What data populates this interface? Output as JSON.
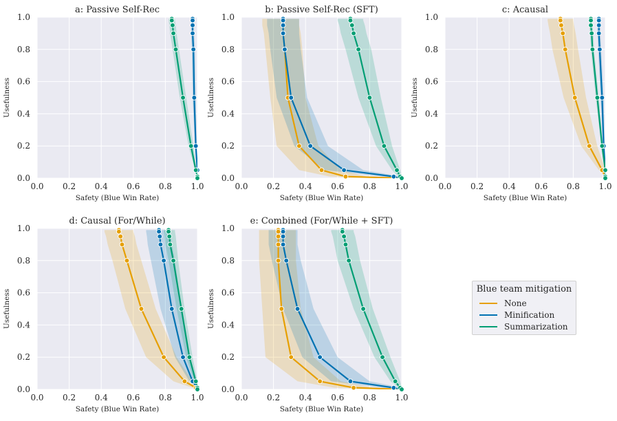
{
  "colors": {
    "none": "#E69F00",
    "minification": "#0072B2",
    "summarization": "#009E73",
    "panel_bg": "#EAEAF2",
    "grid": "#ffffff"
  },
  "legend": {
    "title": "Blue team mitigation",
    "entries": [
      "None",
      "Minification",
      "Summarization"
    ]
  },
  "chart_data": [
    {
      "type": "line",
      "title": "a: Passive Self-Rec",
      "xlabel": "Safety (Blue Win Rate)",
      "ylabel": "Usefulness",
      "xlim": [
        0.0,
        1.0
      ],
      "ylim": [
        0.0,
        1.0
      ],
      "xticks": [
        "0.0",
        "0.2",
        "0.4",
        "0.6",
        "0.8",
        "1.0"
      ],
      "yticks": [
        "0.0",
        "0.2",
        "0.4",
        "0.6",
        "0.8",
        "1.0"
      ],
      "series": [
        {
          "name": "None",
          "x": [],
          "y": [],
          "band_lo": [],
          "band_hi": []
        },
        {
          "name": "Minification",
          "x": [
            0.97,
            0.97,
            0.97,
            0.97,
            0.975,
            0.98,
            0.99,
            1.0,
            1.0,
            1.0
          ],
          "y": [
            0.99,
            0.98,
            0.95,
            0.9,
            0.8,
            0.5,
            0.2,
            0.05,
            0.01,
            0.0
          ],
          "band_lo": [
            0.96,
            0.96,
            0.96,
            0.96,
            0.965,
            0.97,
            0.985,
            0.995,
            1.0,
            1.0
          ],
          "band_hi": [
            0.98,
            0.98,
            0.98,
            0.98,
            0.985,
            0.99,
            0.995,
            1.0,
            1.0,
            1.0
          ]
        },
        {
          "name": "Summarization",
          "x": [
            0.84,
            0.84,
            0.845,
            0.85,
            0.865,
            0.91,
            0.96,
            0.99,
            1.0,
            1.0
          ],
          "y": [
            0.99,
            0.98,
            0.95,
            0.9,
            0.8,
            0.5,
            0.2,
            0.05,
            0.01,
            0.0
          ],
          "band_lo": [
            0.82,
            0.82,
            0.825,
            0.83,
            0.845,
            0.89,
            0.945,
            0.985,
            1.0,
            1.0
          ],
          "band_hi": [
            0.86,
            0.86,
            0.865,
            0.87,
            0.885,
            0.93,
            0.975,
            0.995,
            1.0,
            1.0
          ]
        }
      ]
    },
    {
      "type": "line",
      "title": "b: Passive Self-Rec (SFT)",
      "xlabel": "Safety (Blue Win Rate)",
      "ylabel": "Usefulness",
      "xlim": [
        0.0,
        1.0
      ],
      "ylim": [
        0.0,
        1.0
      ],
      "xticks": [
        "0.0",
        "0.2",
        "0.4",
        "0.6",
        "0.8",
        "1.0"
      ],
      "yticks": [
        "0.0",
        "0.2",
        "0.4",
        "0.6",
        "0.8",
        "1.0"
      ],
      "series": [
        {
          "name": "None",
          "x": [
            0.26,
            0.26,
            0.26,
            0.26,
            0.27,
            0.29,
            0.36,
            0.5,
            0.65,
            1.0
          ],
          "y": [
            0.99,
            0.98,
            0.95,
            0.9,
            0.8,
            0.5,
            0.2,
            0.05,
            0.01,
            0.0
          ],
          "band_lo": [
            0.13,
            0.13,
            0.13,
            0.14,
            0.15,
            0.18,
            0.22,
            0.36,
            0.55,
            1.0
          ],
          "band_hi": [
            0.36,
            0.36,
            0.36,
            0.37,
            0.38,
            0.4,
            0.48,
            0.62,
            0.78,
            1.0
          ]
        },
        {
          "name": "Minification",
          "x": [
            0.26,
            0.26,
            0.26,
            0.26,
            0.27,
            0.31,
            0.43,
            0.64,
            0.95,
            1.0
          ],
          "y": [
            0.99,
            0.98,
            0.95,
            0.9,
            0.8,
            0.5,
            0.2,
            0.05,
            0.01,
            0.0
          ],
          "band_lo": [
            0.16,
            0.16,
            0.16,
            0.17,
            0.18,
            0.22,
            0.33,
            0.52,
            0.88,
            1.0
          ],
          "band_hi": [
            0.36,
            0.36,
            0.36,
            0.36,
            0.37,
            0.41,
            0.54,
            0.76,
            1.0,
            1.0
          ]
        },
        {
          "name": "Summarization",
          "x": [
            0.68,
            0.68,
            0.69,
            0.7,
            0.73,
            0.8,
            0.89,
            0.97,
            0.99,
            1.0
          ],
          "y": [
            0.99,
            0.98,
            0.95,
            0.9,
            0.8,
            0.5,
            0.2,
            0.05,
            0.01,
            0.0
          ],
          "band_lo": [
            0.6,
            0.6,
            0.61,
            0.62,
            0.65,
            0.73,
            0.84,
            0.94,
            0.98,
            1.0
          ],
          "band_hi": [
            0.76,
            0.76,
            0.77,
            0.78,
            0.81,
            0.87,
            0.94,
            0.99,
            1.0,
            1.0
          ]
        }
      ]
    },
    {
      "type": "line",
      "title": "c: Acausal",
      "xlabel": "Safety (Blue Win Rate)",
      "ylabel": "Usefulness",
      "xlim": [
        0.0,
        1.0
      ],
      "ylim": [
        0.0,
        1.0
      ],
      "xticks": [
        "0.0",
        "0.2",
        "0.4",
        "0.6",
        "0.8",
        "1.0"
      ],
      "yticks": [
        "0.0",
        "0.2",
        "0.4",
        "0.6",
        "0.8",
        "1.0"
      ],
      "series": [
        {
          "name": "None",
          "x": [
            0.72,
            0.72,
            0.725,
            0.735,
            0.75,
            0.81,
            0.9,
            0.98,
            1.0,
            1.0
          ],
          "y": [
            0.99,
            0.98,
            0.95,
            0.9,
            0.8,
            0.5,
            0.2,
            0.05,
            0.01,
            0.0
          ],
          "band_lo": [
            0.64,
            0.64,
            0.645,
            0.655,
            0.67,
            0.74,
            0.85,
            0.96,
            1.0,
            1.0
          ],
          "band_hi": [
            0.8,
            0.8,
            0.805,
            0.815,
            0.83,
            0.88,
            0.95,
            1.0,
            1.0,
            1.0
          ]
        },
        {
          "name": "Minification",
          "x": [
            0.96,
            0.96,
            0.96,
            0.96,
            0.965,
            0.98,
            0.99,
            1.0,
            1.0,
            1.0
          ],
          "y": [
            0.99,
            0.98,
            0.95,
            0.9,
            0.8,
            0.5,
            0.2,
            0.05,
            0.01,
            0.0
          ],
          "band_lo": [
            0.95,
            0.95,
            0.95,
            0.95,
            0.955,
            0.97,
            0.985,
            0.995,
            1.0,
            1.0
          ],
          "band_hi": [
            0.97,
            0.97,
            0.97,
            0.97,
            0.975,
            0.99,
            0.995,
            1.0,
            1.0,
            1.0
          ]
        },
        {
          "name": "Summarization",
          "x": [
            0.91,
            0.91,
            0.91,
            0.915,
            0.92,
            0.95,
            0.98,
            1.0,
            1.0,
            1.0
          ],
          "y": [
            0.99,
            0.98,
            0.95,
            0.9,
            0.8,
            0.5,
            0.2,
            0.05,
            0.01,
            0.0
          ],
          "band_lo": [
            0.9,
            0.9,
            0.9,
            0.905,
            0.91,
            0.94,
            0.975,
            0.995,
            1.0,
            1.0
          ],
          "band_hi": [
            0.92,
            0.92,
            0.92,
            0.925,
            0.93,
            0.96,
            0.985,
            1.0,
            1.0,
            1.0
          ]
        }
      ]
    },
    {
      "type": "line",
      "title": "d: Causal (For/While)",
      "xlabel": "Safety (Blue Win Rate)",
      "ylabel": "Usefulness",
      "xlim": [
        0.0,
        1.0
      ],
      "ylim": [
        0.0,
        1.0
      ],
      "xticks": [
        "0.0",
        "0.2",
        "0.4",
        "0.6",
        "0.8",
        "1.0"
      ],
      "yticks": [
        "0.0",
        "0.2",
        "0.4",
        "0.6",
        "0.8",
        "1.0"
      ],
      "series": [
        {
          "name": "None",
          "x": [
            0.51,
            0.51,
            0.52,
            0.53,
            0.56,
            0.65,
            0.79,
            0.92,
            0.99,
            1.0
          ],
          "y": [
            0.99,
            0.98,
            0.95,
            0.9,
            0.8,
            0.5,
            0.2,
            0.05,
            0.01,
            0.0
          ],
          "band_lo": [
            0.42,
            0.42,
            0.43,
            0.44,
            0.47,
            0.55,
            0.68,
            0.85,
            0.97,
            1.0
          ],
          "band_hi": [
            0.6,
            0.6,
            0.61,
            0.62,
            0.65,
            0.74,
            0.87,
            0.97,
            1.0,
            1.0
          ]
        },
        {
          "name": "Minification",
          "x": [
            0.76,
            0.76,
            0.765,
            0.77,
            0.79,
            0.84,
            0.91,
            0.97,
            1.0,
            1.0
          ],
          "y": [
            0.99,
            0.98,
            0.95,
            0.9,
            0.8,
            0.5,
            0.2,
            0.05,
            0.01,
            0.0
          ],
          "band_lo": [
            0.68,
            0.68,
            0.685,
            0.69,
            0.71,
            0.77,
            0.86,
            0.95,
            1.0,
            1.0
          ],
          "band_hi": [
            0.83,
            0.83,
            0.835,
            0.84,
            0.86,
            0.9,
            0.95,
            0.99,
            1.0,
            1.0
          ]
        },
        {
          "name": "Summarization",
          "x": [
            0.82,
            0.82,
            0.825,
            0.83,
            0.85,
            0.9,
            0.95,
            0.99,
            1.0,
            1.0
          ],
          "y": [
            0.99,
            0.98,
            0.95,
            0.9,
            0.8,
            0.5,
            0.2,
            0.05,
            0.01,
            0.0
          ],
          "band_lo": [
            0.79,
            0.79,
            0.795,
            0.8,
            0.82,
            0.87,
            0.93,
            0.98,
            1.0,
            1.0
          ],
          "band_hi": [
            0.86,
            0.86,
            0.865,
            0.87,
            0.88,
            0.92,
            0.97,
            1.0,
            1.0,
            1.0
          ]
        }
      ]
    },
    {
      "type": "line",
      "title": "e: Combined (For/While + SFT)",
      "xlabel": "Safety (Blue Win Rate)",
      "ylabel": "Usefulness",
      "xlim": [
        0.0,
        1.0
      ],
      "ylim": [
        0.0,
        1.0
      ],
      "xticks": [
        "0.0",
        "0.2",
        "0.4",
        "0.6",
        "0.8",
        "1.0"
      ],
      "yticks": [
        "0.0",
        "0.2",
        "0.4",
        "0.6",
        "0.8",
        "1.0"
      ],
      "series": [
        {
          "name": "None",
          "x": [
            0.23,
            0.23,
            0.23,
            0.23,
            0.23,
            0.25,
            0.31,
            0.49,
            0.7,
            1.0
          ],
          "y": [
            0.99,
            0.98,
            0.95,
            0.9,
            0.8,
            0.5,
            0.2,
            0.05,
            0.01,
            0.0
          ],
          "band_lo": [
            0.11,
            0.11,
            0.11,
            0.11,
            0.11,
            0.13,
            0.15,
            0.35,
            0.58,
            1.0
          ],
          "band_hi": [
            0.34,
            0.34,
            0.34,
            0.34,
            0.34,
            0.37,
            0.45,
            0.62,
            0.82,
            1.0
          ]
        },
        {
          "name": "Minification",
          "x": [
            0.26,
            0.26,
            0.26,
            0.26,
            0.28,
            0.35,
            0.49,
            0.68,
            0.95,
            1.0
          ],
          "y": [
            0.99,
            0.98,
            0.95,
            0.9,
            0.8,
            0.5,
            0.2,
            0.05,
            0.01,
            0.0
          ],
          "band_lo": [
            0.17,
            0.17,
            0.17,
            0.17,
            0.19,
            0.26,
            0.38,
            0.56,
            0.88,
            1.0
          ],
          "band_hi": [
            0.35,
            0.35,
            0.35,
            0.35,
            0.37,
            0.45,
            0.6,
            0.8,
            1.0,
            1.0
          ]
        },
        {
          "name": "Summarization",
          "x": [
            0.63,
            0.63,
            0.64,
            0.65,
            0.67,
            0.76,
            0.88,
            0.96,
            0.99,
            1.0
          ],
          "y": [
            0.99,
            0.98,
            0.95,
            0.9,
            0.8,
            0.5,
            0.2,
            0.05,
            0.01,
            0.0
          ],
          "band_lo": [
            0.56,
            0.56,
            0.57,
            0.58,
            0.6,
            0.7,
            0.83,
            0.93,
            0.98,
            1.0
          ],
          "band_hi": [
            0.7,
            0.7,
            0.71,
            0.72,
            0.74,
            0.82,
            0.93,
            0.99,
            1.0,
            1.0
          ]
        }
      ]
    }
  ]
}
